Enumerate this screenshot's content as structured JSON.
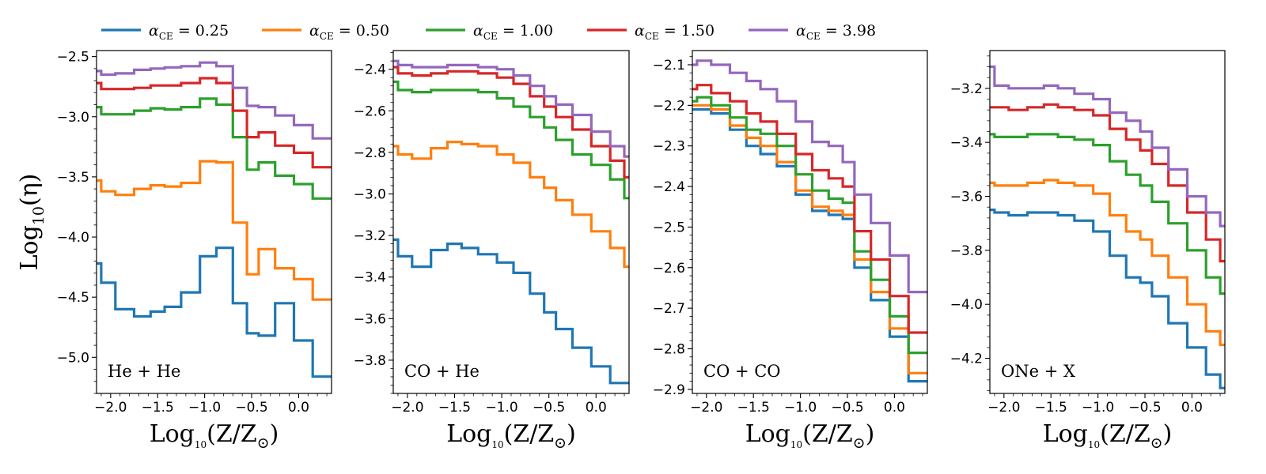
{
  "chart_data": [
    {
      "type": "line",
      "drawstyle": "steps-mid",
      "panel_label": "He + He",
      "xlabel": "Log10(Z/Z⊙)",
      "ylabel": "Log10(η)",
      "xlim": [
        -2.15,
        0.35
      ],
      "ylim": [
        -5.3,
        -2.45
      ],
      "xticks": [
        -2.0,
        -1.5,
        -1.0,
        -0.5,
        0.0
      ],
      "xtick_labels": [
        "−2.0",
        "−1.5",
        "−1.0",
        "−0.5",
        "0.0"
      ],
      "yticks": [
        -5.0,
        -4.5,
        -4.0,
        -3.5,
        -3.0,
        -2.5
      ],
      "ytick_labels": [
        "−5.0",
        "−4.5",
        "−4.0",
        "−3.5",
        "−3.0",
        "−2.5"
      ],
      "x": [
        -2.15,
        -2.05,
        -1.85,
        -1.65,
        -1.5,
        -1.35,
        -1.15,
        -0.95,
        -0.8,
        -0.6,
        -0.5,
        -0.35,
        -0.15,
        0.05,
        0.25,
        0.35
      ],
      "series": [
        {
          "name": "αCE = 0.25",
          "values": [
            -4.22,
            -4.38,
            -4.6,
            -4.66,
            -4.62,
            -4.58,
            -4.46,
            -4.16,
            -4.09,
            -4.55,
            -4.8,
            -4.82,
            -4.55,
            -4.86,
            -5.16,
            -5.16
          ]
        },
        {
          "name": "αCE = 0.50",
          "values": [
            -3.53,
            -3.62,
            -3.65,
            -3.6,
            -3.57,
            -3.58,
            -3.55,
            -3.37,
            -3.38,
            -3.88,
            -4.31,
            -4.1,
            -4.26,
            -4.35,
            -4.52,
            -4.52
          ]
        },
        {
          "name": "αCE = 1.00",
          "values": [
            -2.92,
            -2.98,
            -2.98,
            -2.95,
            -2.93,
            -2.94,
            -2.92,
            -2.85,
            -2.9,
            -3.17,
            -3.44,
            -3.38,
            -3.49,
            -3.56,
            -3.68,
            -3.68
          ]
        },
        {
          "name": "αCE = 1.50",
          "values": [
            -2.72,
            -2.77,
            -2.77,
            -2.76,
            -2.74,
            -2.74,
            -2.72,
            -2.68,
            -2.72,
            -2.95,
            -3.17,
            -3.13,
            -3.24,
            -3.3,
            -3.42,
            -3.42
          ]
        },
        {
          "name": "αCE = 3.98",
          "values": [
            -2.62,
            -2.65,
            -2.64,
            -2.61,
            -2.6,
            -2.59,
            -2.58,
            -2.55,
            -2.58,
            -2.76,
            -2.91,
            -2.92,
            -2.99,
            -3.07,
            -3.18,
            -3.18
          ]
        }
      ]
    },
    {
      "type": "line",
      "drawstyle": "steps-mid",
      "panel_label": "CO + He",
      "xlabel": "Log10(Z/Z⊙)",
      "ylabel": "",
      "xlim": [
        -2.15,
        0.35
      ],
      "ylim": [
        -3.96,
        -2.31
      ],
      "xticks": [
        -2.0,
        -1.5,
        -1.0,
        -0.5,
        0.0
      ],
      "xtick_labels": [
        "−2.0",
        "−1.5",
        "−1.0",
        "−0.5",
        "0.0"
      ],
      "yticks": [
        -3.8,
        -3.6,
        -3.4,
        -3.2,
        -3.0,
        -2.8,
        -2.6,
        -2.4
      ],
      "ytick_labels": [
        "−3.8",
        "−3.6",
        "−3.4",
        "−3.2",
        "−3.0",
        "−2.8",
        "−2.6",
        "−2.4"
      ],
      "x": [
        -2.15,
        -2.05,
        -1.85,
        -1.65,
        -1.5,
        -1.35,
        -1.15,
        -0.95,
        -0.8,
        -0.6,
        -0.5,
        -0.35,
        -0.15,
        0.05,
        0.25,
        0.35
      ],
      "series": [
        {
          "name": "αCE = 0.25",
          "values": [
            -3.22,
            -3.3,
            -3.35,
            -3.27,
            -3.24,
            -3.26,
            -3.29,
            -3.33,
            -3.38,
            -3.48,
            -3.57,
            -3.65,
            -3.74,
            -3.83,
            -3.91,
            -3.91
          ]
        },
        {
          "name": "αCE = 0.50",
          "values": [
            -2.77,
            -2.81,
            -2.83,
            -2.78,
            -2.75,
            -2.76,
            -2.77,
            -2.81,
            -2.85,
            -2.92,
            -2.97,
            -3.03,
            -3.1,
            -3.18,
            -3.26,
            -3.35
          ]
        },
        {
          "name": "αCE = 1.00",
          "values": [
            -2.46,
            -2.5,
            -2.51,
            -2.5,
            -2.5,
            -2.5,
            -2.51,
            -2.54,
            -2.58,
            -2.63,
            -2.68,
            -2.74,
            -2.81,
            -2.86,
            -2.93,
            -3.02
          ]
        },
        {
          "name": "αCE = 1.50",
          "values": [
            -2.39,
            -2.42,
            -2.43,
            -2.42,
            -2.41,
            -2.41,
            -2.42,
            -2.44,
            -2.47,
            -2.53,
            -2.58,
            -2.63,
            -2.69,
            -2.77,
            -2.84,
            -2.92
          ]
        },
        {
          "name": "αCE = 3.98",
          "values": [
            -2.36,
            -2.38,
            -2.39,
            -2.39,
            -2.38,
            -2.38,
            -2.39,
            -2.4,
            -2.43,
            -2.48,
            -2.53,
            -2.57,
            -2.62,
            -2.7,
            -2.77,
            -2.82
          ]
        }
      ]
    },
    {
      "type": "line",
      "drawstyle": "steps-mid",
      "panel_label": "CO + CO",
      "xlabel": "Log10(Z/Z⊙)",
      "ylabel": "",
      "xlim": [
        -2.15,
        0.35
      ],
      "ylim": [
        -2.91,
        -2.065
      ],
      "xticks": [
        -2.0,
        -1.5,
        -1.0,
        -0.5,
        0.0
      ],
      "xtick_labels": [
        "−2.0",
        "−1.5",
        "−1.0",
        "−0.5",
        "0.0"
      ],
      "yticks": [
        -2.9,
        -2.8,
        -2.7,
        -2.6,
        -2.5,
        -2.4,
        -2.3,
        -2.2,
        -2.1
      ],
      "ytick_labels": [
        "−2.9",
        "−2.8",
        "−2.7",
        "−2.6",
        "−2.5",
        "−2.4",
        "−2.3",
        "−2.2",
        "−2.1"
      ],
      "x": [
        -2.15,
        -2.05,
        -1.85,
        -1.65,
        -1.5,
        -1.35,
        -1.15,
        -0.95,
        -0.8,
        -0.6,
        -0.5,
        -0.35,
        -0.15,
        0.05,
        0.25,
        0.35
      ],
      "series": [
        {
          "name": "αCE = 0.25",
          "values": [
            -2.21,
            -2.21,
            -2.22,
            -2.26,
            -2.3,
            -2.32,
            -2.35,
            -2.42,
            -2.46,
            -2.47,
            -2.48,
            -2.6,
            -2.68,
            -2.77,
            -2.88,
            -2.88
          ]
        },
        {
          "name": "αCE = 0.50",
          "values": [
            -2.2,
            -2.2,
            -2.21,
            -2.25,
            -2.28,
            -2.3,
            -2.34,
            -2.41,
            -2.45,
            -2.46,
            -2.47,
            -2.58,
            -2.66,
            -2.75,
            -2.86,
            -2.86
          ]
        },
        {
          "name": "αCE = 1.00",
          "values": [
            -2.19,
            -2.18,
            -2.2,
            -2.23,
            -2.26,
            -2.27,
            -2.3,
            -2.37,
            -2.41,
            -2.43,
            -2.44,
            -2.56,
            -2.63,
            -2.72,
            -2.81,
            -2.81
          ]
        },
        {
          "name": "αCE = 1.50",
          "values": [
            -2.16,
            -2.15,
            -2.17,
            -2.19,
            -2.22,
            -2.24,
            -2.27,
            -2.32,
            -2.36,
            -2.38,
            -2.4,
            -2.51,
            -2.58,
            -2.67,
            -2.76,
            -2.76
          ]
        },
        {
          "name": "αCE = 3.98",
          "values": [
            -2.1,
            -2.09,
            -2.1,
            -2.12,
            -2.14,
            -2.16,
            -2.19,
            -2.24,
            -2.29,
            -2.3,
            -2.34,
            -2.42,
            -2.49,
            -2.57,
            -2.66,
            -2.66
          ]
        }
      ]
    },
    {
      "type": "line",
      "drawstyle": "steps-mid",
      "panel_label": "ONe + X",
      "xlabel": "Log10(Z/Z⊙)",
      "ylabel": "",
      "xlim": [
        -2.15,
        0.35
      ],
      "ylim": [
        -4.33,
        -3.06
      ],
      "xticks": [
        -2.0,
        -1.5,
        -1.0,
        -0.5,
        0.0
      ],
      "xtick_labels": [
        "−2.0",
        "−1.5",
        "−1.0",
        "−0.5",
        "0.0"
      ],
      "yticks": [
        -4.2,
        -4.0,
        -3.8,
        -3.6,
        -3.4,
        -3.2
      ],
      "ytick_labels": [
        "−4.2",
        "−4.0",
        "−3.8",
        "−3.6",
        "−3.4",
        "−3.2"
      ],
      "x": [
        -2.15,
        -2.05,
        -1.85,
        -1.65,
        -1.5,
        -1.35,
        -1.15,
        -0.95,
        -0.8,
        -0.6,
        -0.5,
        -0.35,
        -0.15,
        0.05,
        0.25,
        0.35
      ],
      "series": [
        {
          "name": "αCE = 0.25",
          "values": [
            -3.65,
            -3.66,
            -3.67,
            -3.66,
            -3.66,
            -3.67,
            -3.69,
            -3.73,
            -3.82,
            -3.9,
            -3.92,
            -3.97,
            -4.07,
            -4.16,
            -4.26,
            -4.31
          ]
        },
        {
          "name": "αCE = 0.50",
          "values": [
            -3.55,
            -3.56,
            -3.56,
            -3.55,
            -3.54,
            -3.55,
            -3.56,
            -3.59,
            -3.67,
            -3.73,
            -3.76,
            -3.82,
            -3.9,
            -4.0,
            -4.1,
            -4.15
          ]
        },
        {
          "name": "αCE = 1.00",
          "values": [
            -3.37,
            -3.38,
            -3.38,
            -3.37,
            -3.37,
            -3.38,
            -3.39,
            -3.41,
            -3.47,
            -3.52,
            -3.56,
            -3.62,
            -3.7,
            -3.8,
            -3.9,
            -3.96
          ]
        },
        {
          "name": "αCE = 1.50",
          "values": [
            -3.27,
            -3.27,
            -3.28,
            -3.27,
            -3.26,
            -3.27,
            -3.28,
            -3.3,
            -3.35,
            -3.39,
            -3.43,
            -3.48,
            -3.56,
            -3.66,
            -3.76,
            -3.84
          ]
        },
        {
          "name": "αCE = 3.98",
          "values": [
            -3.12,
            -3.19,
            -3.2,
            -3.2,
            -3.19,
            -3.2,
            -3.22,
            -3.24,
            -3.29,
            -3.32,
            -3.36,
            -3.42,
            -3.5,
            -3.6,
            -3.66,
            -3.71
          ]
        }
      ]
    }
  ],
  "legend": {
    "placement": "top-center",
    "items": [
      {
        "label": "αCE = 0.25",
        "symbol": "α",
        "sub": "CE",
        "rest": " = 0.25",
        "color": "#1f77b4"
      },
      {
        "label": "αCE = 0.50",
        "symbol": "α",
        "sub": "CE",
        "rest": " = 0.50",
        "color": "#ff7f0e"
      },
      {
        "label": "αCE = 1.00",
        "symbol": "α",
        "sub": "CE",
        "rest": " = 1.00",
        "color": "#2ca02c"
      },
      {
        "label": "αCE = 1.50",
        "symbol": "α",
        "sub": "CE",
        "rest": " = 1.50",
        "color": "#d62728"
      },
      {
        "label": "αCE = 3.98",
        "symbol": "α",
        "sub": "CE",
        "rest": " = 3.98",
        "color": "#9467bd"
      }
    ]
  },
  "axis_text": {
    "x_main": "Log",
    "x_sub": "10",
    "x_rest": "(Z/Z",
    "x_sun_sub": "⊙",
    "x_close": ")",
    "y_main": "Log",
    "y_sub": "10",
    "y_rest": "(η)"
  }
}
